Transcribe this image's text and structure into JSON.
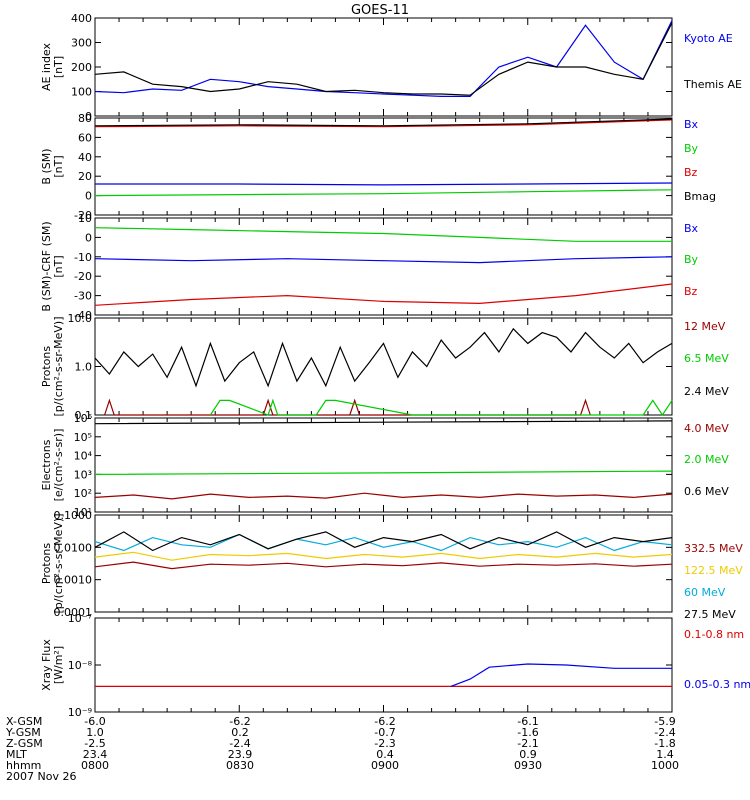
{
  "title": "GOES-11",
  "colors": {
    "black": "#000000",
    "blue": "#0000ee",
    "green": "#00cc00",
    "red": "#dd0000",
    "darkred": "#990000",
    "cyan": "#00aadd",
    "yellow": "#eecc00"
  },
  "footer": {
    "rows": [
      {
        "label": "X-GSM",
        "values": [
          "-6.0",
          "-6.2",
          "-6.2",
          "-6.1",
          "-5.9"
        ]
      },
      {
        "label": "Y-GSM",
        "values": [
          "1.0",
          "0.2",
          "-0.7",
          "-1.6",
          "-2.4"
        ]
      },
      {
        "label": "Z-GSM",
        "values": [
          "-2.5",
          "-2.4",
          "-2.3",
          "-2.1",
          "-1.8"
        ]
      },
      {
        "label": "MLT",
        "values": [
          "23.4",
          "23.9",
          "0.4",
          "0.9",
          "1.4"
        ]
      },
      {
        "label": "hhmm",
        "values": [
          "0800",
          "0830",
          "0900",
          "0930",
          "1000"
        ]
      }
    ],
    "date": "2007 Nov 26"
  },
  "chart_data": [
    {
      "type": "line",
      "ylabel": "AE index\n[nT]",
      "ylim": [
        0,
        400
      ],
      "yscale": "linear",
      "yticks": [
        {
          "v": 0,
          "label": "0"
        },
        {
          "v": 100,
          "label": "100"
        },
        {
          "v": 200,
          "label": "200"
        },
        {
          "v": 300,
          "label": "300"
        },
        {
          "v": 400,
          "label": "400"
        }
      ],
      "series": [
        {
          "name": "Kyoto AE",
          "color": "#0000ee",
          "x": [
            0,
            6,
            12,
            18,
            24,
            30,
            36,
            42,
            48,
            54,
            60,
            66,
            72,
            78,
            84,
            90,
            96,
            102,
            108,
            114,
            120
          ],
          "y": [
            100,
            95,
            110,
            105,
            150,
            140,
            120,
            110,
            100,
            95,
            90,
            85,
            80,
            80,
            200,
            240,
            200,
            370,
            220,
            150,
            390
          ]
        },
        {
          "name": "Themis AE",
          "color": "#000000",
          "x": [
            0,
            6,
            12,
            18,
            24,
            30,
            36,
            42,
            48,
            54,
            60,
            66,
            72,
            78,
            84,
            90,
            96,
            102,
            108,
            114,
            120
          ],
          "y": [
            170,
            180,
            130,
            120,
            100,
            110,
            140,
            130,
            100,
            105,
            95,
            90,
            90,
            85,
            170,
            220,
            200,
            200,
            170,
            150,
            380
          ]
        }
      ]
    },
    {
      "type": "line",
      "ylabel": "B (SM)\n[nT]",
      "ylim": [
        -20,
        80
      ],
      "yscale": "linear",
      "yticks": [
        {
          "v": -20,
          "label": "-20"
        },
        {
          "v": 0,
          "label": "0"
        },
        {
          "v": 20,
          "label": "20"
        },
        {
          "v": 40,
          "label": "40"
        },
        {
          "v": 60,
          "label": "60"
        },
        {
          "v": 80,
          "label": "80"
        }
      ],
      "series": [
        {
          "name": "Bx",
          "color": "#0000ee",
          "x": [
            0,
            30,
            60,
            90,
            120
          ],
          "y": [
            12,
            12,
            11,
            12,
            13
          ]
        },
        {
          "name": "By",
          "color": "#00cc00",
          "x": [
            0,
            30,
            60,
            90,
            120
          ],
          "y": [
            0,
            1,
            2,
            4,
            6
          ]
        },
        {
          "name": "Bz",
          "color": "#dd0000",
          "x": [
            0,
            30,
            60,
            90,
            120
          ],
          "y": [
            71,
            72,
            71,
            73,
            78
          ]
        },
        {
          "name": "Bmag",
          "color": "#000000",
          "x": [
            0,
            30,
            60,
            90,
            120
          ],
          "y": [
            72,
            73,
            72,
            74,
            79
          ]
        }
      ]
    },
    {
      "type": "line",
      "ylabel": "B (SM)-CRF (SM)\n[nT]",
      "ylim": [
        -40,
        10
      ],
      "yscale": "linear",
      "yticks": [
        {
          "v": -40,
          "label": "-40"
        },
        {
          "v": -30,
          "label": "-30"
        },
        {
          "v": -20,
          "label": "-20"
        },
        {
          "v": -10,
          "label": "-10"
        },
        {
          "v": 0,
          "label": "0"
        },
        {
          "v": 10,
          "label": "10"
        }
      ],
      "series": [
        {
          "name": "Bx",
          "color": "#0000ee",
          "x": [
            0,
            20,
            40,
            60,
            80,
            100,
            120
          ],
          "y": [
            -11,
            -12,
            -11,
            -12,
            -13,
            -11,
            -10
          ]
        },
        {
          "name": "By",
          "color": "#00cc00",
          "x": [
            0,
            20,
            40,
            60,
            80,
            100,
            120
          ],
          "y": [
            5,
            4,
            3,
            2,
            0,
            -2,
            -2
          ]
        },
        {
          "name": "Bz",
          "color": "#dd0000",
          "x": [
            0,
            20,
            40,
            60,
            80,
            100,
            120
          ],
          "y": [
            -35,
            -32,
            -30,
            -33,
            -34,
            -30,
            -24
          ]
        }
      ]
    },
    {
      "type": "line",
      "ylabel": "Protons\n[p/(cm²-s-sr-MeV)]",
      "ylim": [
        0.1,
        10
      ],
      "yscale": "log",
      "yticks": [
        {
          "v": 0.1,
          "label": "0.1"
        },
        {
          "v": 1,
          "label": "1.0"
        },
        {
          "v": 10,
          "label": "10.0"
        }
      ],
      "series": [
        {
          "name": "12 MeV",
          "color": "#990000",
          "x": [
            2,
            3,
            4,
            35,
            36,
            37,
            53,
            54,
            55,
            101,
            102,
            103
          ],
          "y": [
            0.1,
            0.2,
            0.1,
            0.1,
            0.2,
            0.1,
            0.1,
            0.2,
            0.1,
            0.1,
            0.2,
            0.1
          ]
        },
        {
          "name": "6.5 MeV",
          "color": "#00cc00",
          "x": [
            24,
            26,
            28,
            36,
            37,
            38,
            46,
            48,
            50,
            66,
            68,
            70,
            78,
            80,
            82,
            114,
            116,
            118,
            120
          ],
          "y": [
            0.1,
            0.2,
            0.2,
            0.1,
            0.2,
            0.1,
            0.1,
            0.2,
            0.2,
            0.1,
            0.1,
            0.1,
            0.1,
            0.1,
            0.1,
            0.1,
            0.2,
            0.1,
            0.2
          ]
        },
        {
          "name": "2.4 MeV",
          "color": "#000000",
          "x": [
            0,
            3,
            6,
            9,
            12,
            15,
            18,
            21,
            24,
            27,
            30,
            33,
            36,
            39,
            42,
            45,
            48,
            51,
            54,
            57,
            60,
            63,
            66,
            69,
            72,
            75,
            78,
            81,
            84,
            87,
            90,
            93,
            96,
            99,
            102,
            105,
            108,
            111,
            114,
            117,
            120
          ],
          "y": [
            1.5,
            0.7,
            2.0,
            1.0,
            1.8,
            0.6,
            2.5,
            0.4,
            3.0,
            0.5,
            1.2,
            2.0,
            0.4,
            3.0,
            0.5,
            1.5,
            0.4,
            2.5,
            0.5,
            1.2,
            3.0,
            0.6,
            2.0,
            1.0,
            3.5,
            1.5,
            2.5,
            5.0,
            2.0,
            6.0,
            3.0,
            5.0,
            4.0,
            2.0,
            5.0,
            2.5,
            1.5,
            3.0,
            1.2,
            2.0,
            3.0
          ]
        }
      ]
    },
    {
      "type": "line",
      "ylabel": "Electrons\n[e/(cm²-s-sr)]",
      "ylim": [
        10,
        1000000
      ],
      "yscale": "log",
      "yticks": [
        {
          "v": 10,
          "label": "10¹"
        },
        {
          "v": 100,
          "label": "10²"
        },
        {
          "v": 1000,
          "label": "10³"
        },
        {
          "v": 10000,
          "label": "10⁴"
        },
        {
          "v": 100000,
          "label": "10⁵"
        },
        {
          "v": 1000000,
          "label": "10⁶"
        }
      ],
      "series": [
        {
          "name": "4.0 MeV",
          "color": "#990000",
          "x": [
            0,
            8,
            16,
            24,
            32,
            40,
            48,
            56,
            64,
            72,
            80,
            88,
            96,
            104,
            112,
            120
          ],
          "y": [
            60,
            80,
            50,
            90,
            60,
            70,
            55,
            100,
            60,
            80,
            60,
            90,
            70,
            80,
            60,
            90
          ]
        },
        {
          "name": "2.0 MeV",
          "color": "#00cc00",
          "x": [
            0,
            60,
            120
          ],
          "y": [
            1000,
            1200,
            1500
          ]
        },
        {
          "name": "0.6 MeV",
          "color": "#000000",
          "x": [
            0,
            60,
            120
          ],
          "y": [
            500000,
            600000,
            700000
          ]
        }
      ]
    },
    {
      "type": "line",
      "ylabel": "Protons\n[p/(cm²-s-sr-MeV)]",
      "ylim": [
        0.0001,
        0.1
      ],
      "yscale": "log",
      "yticks": [
        {
          "v": 0.0001,
          "label": "0.0001"
        },
        {
          "v": 0.001,
          "label": "0.0010"
        },
        {
          "v": 0.01,
          "label": "0.0100"
        },
        {
          "v": 0.1,
          "label": "0.1000"
        }
      ],
      "series": [
        {
          "name": "332.5 MeV",
          "color": "#990000",
          "x": [
            0,
            8,
            16,
            24,
            32,
            40,
            48,
            56,
            64,
            72,
            80,
            88,
            96,
            104,
            112,
            120
          ],
          "y": [
            0.0025,
            0.0035,
            0.0022,
            0.003,
            0.0028,
            0.0032,
            0.0025,
            0.003,
            0.0027,
            0.0033,
            0.0026,
            0.003,
            0.0028,
            0.0031,
            0.0026,
            0.003
          ]
        },
        {
          "name": "122.5 MeV",
          "color": "#eecc00",
          "x": [
            0,
            8,
            16,
            24,
            32,
            40,
            48,
            56,
            64,
            72,
            80,
            88,
            96,
            104,
            112,
            120
          ],
          "y": [
            0.005,
            0.007,
            0.004,
            0.006,
            0.0055,
            0.0065,
            0.0045,
            0.006,
            0.005,
            0.0065,
            0.0045,
            0.006,
            0.005,
            0.0065,
            0.005,
            0.006
          ]
        },
        {
          "name": "60 MeV",
          "color": "#00aadd",
          "x": [
            0,
            6,
            12,
            18,
            24,
            30,
            36,
            42,
            48,
            54,
            60,
            66,
            72,
            78,
            84,
            90,
            96,
            102,
            108,
            114,
            120
          ],
          "y": [
            0.015,
            0.008,
            0.02,
            0.012,
            0.01,
            0.025,
            0.009,
            0.018,
            0.012,
            0.02,
            0.01,
            0.015,
            0.008,
            0.02,
            0.012,
            0.015,
            0.01,
            0.02,
            0.008,
            0.015,
            0.012
          ]
        },
        {
          "name": "27.5 MeV",
          "color": "#000000",
          "x": [
            0,
            6,
            12,
            18,
            24,
            30,
            36,
            42,
            48,
            54,
            60,
            66,
            72,
            78,
            84,
            90,
            96,
            102,
            108,
            114,
            120
          ],
          "y": [
            0.01,
            0.03,
            0.008,
            0.02,
            0.012,
            0.025,
            0.009,
            0.018,
            0.03,
            0.01,
            0.02,
            0.015,
            0.025,
            0.009,
            0.02,
            0.012,
            0.03,
            0.01,
            0.02,
            0.015,
            0.02
          ]
        }
      ]
    },
    {
      "type": "line",
      "ylabel": "Xray Flux\n[W/m²]",
      "ylim": [
        1e-09,
        1e-07
      ],
      "yscale": "log",
      "yticks": [
        {
          "v": 1e-09,
          "label": "10⁻⁹"
        },
        {
          "v": 1e-08,
          "label": "10⁻⁸"
        },
        {
          "v": 1e-07,
          "label": "10⁻⁷"
        }
      ],
      "series": [
        {
          "name": "0.1-0.8 nm",
          "color": "#dd0000",
          "x": [
            0,
            120
          ],
          "y": [
            3.5e-09,
            3.5e-09
          ]
        },
        {
          "name": "0.05-0.3 nm",
          "color": "#0000ee",
          "x": [
            74,
            78,
            82,
            90,
            98,
            108,
            120
          ],
          "y": [
            3.5e-09,
            5e-09,
            9e-09,
            1.05e-08,
            1e-08,
            8.5e-09,
            8.5e-09
          ]
        }
      ]
    }
  ]
}
